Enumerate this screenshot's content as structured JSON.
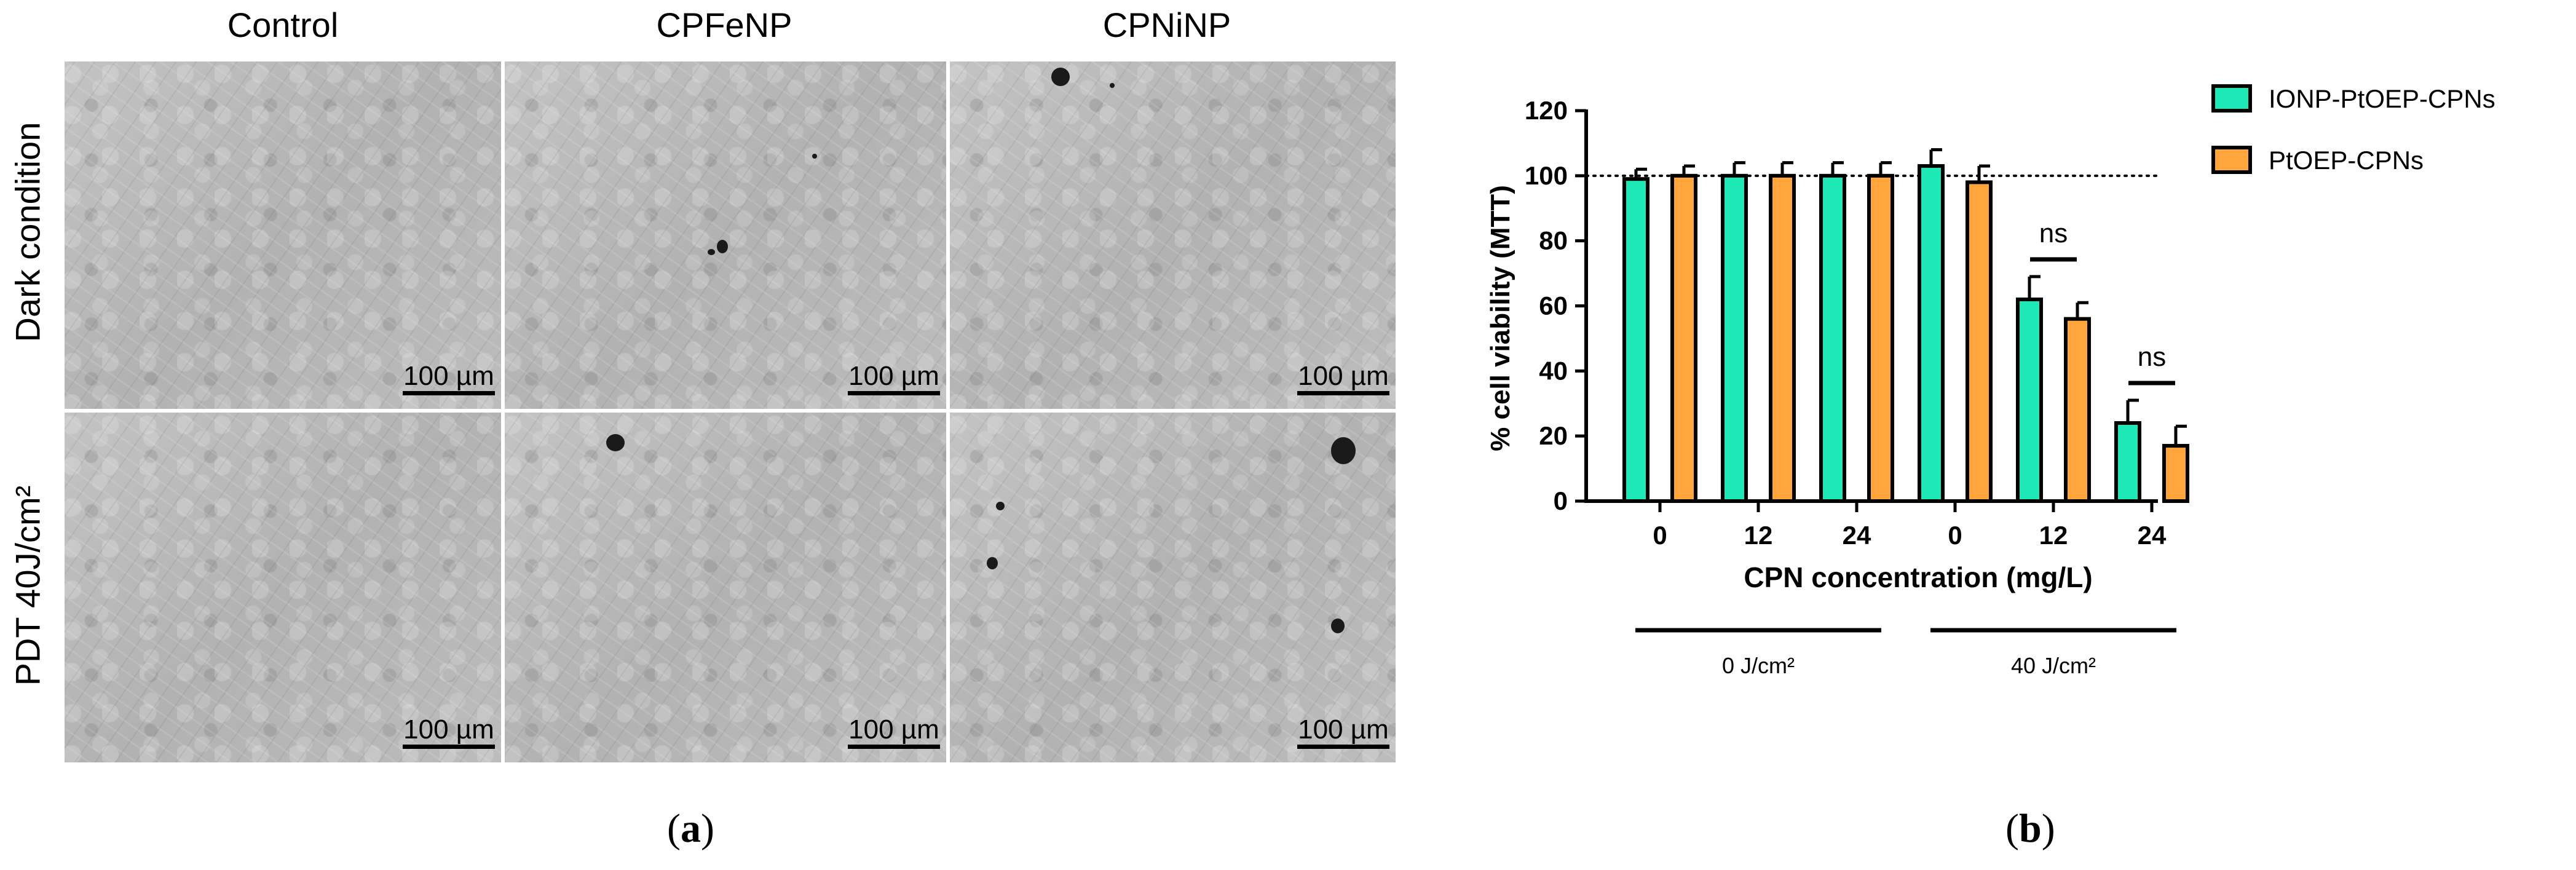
{
  "panel_a": {
    "columns": [
      "Control",
      "CPFeNP",
      "CPNiNP"
    ],
    "rows": [
      "Dark condition",
      "PDT 40J/cm²"
    ],
    "scale_bar_label": "100 µm",
    "tag": "a"
  },
  "panel_b": {
    "tag": "b"
  },
  "chart_data": {
    "type": "bar",
    "title": "",
    "xlabel": "CPN concentration (mg/L)",
    "ylabel": "% cell viability (MTT)",
    "ylim": [
      0,
      120
    ],
    "yticks": [
      0,
      20,
      40,
      60,
      80,
      100,
      120
    ],
    "categories": [
      "0",
      "12",
      "24",
      "0",
      "12",
      "24"
    ],
    "groups": [
      {
        "label": "0 J/cm²",
        "categories": [
          0,
          1,
          2
        ]
      },
      {
        "label": "40 J/cm²",
        "categories": [
          3,
          4,
          5
        ]
      }
    ],
    "series": [
      {
        "name": "IONP-PtOEP-CPNs",
        "color": "#1de9b6",
        "values": [
          99,
          100,
          100,
          103,
          62,
          24
        ],
        "errors": [
          3,
          4,
          4,
          5,
          7,
          7
        ]
      },
      {
        "name": "PtOEP-CPNs",
        "color": "#ffa53c",
        "values": [
          100,
          100,
          100,
          98,
          56,
          17
        ],
        "errors": [
          3,
          4,
          4,
          5,
          5,
          6
        ]
      }
    ],
    "reference_line": 100,
    "annotations": [
      {
        "text": "ns",
        "category": 4
      },
      {
        "text": "ns",
        "category": 5
      }
    ],
    "legend_position": "top-right",
    "grid": false
  }
}
